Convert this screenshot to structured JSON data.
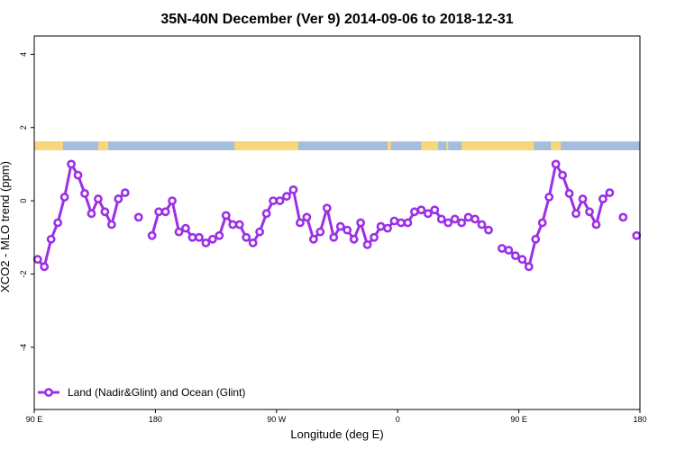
{
  "chart_data": {
    "type": "line",
    "title": "35N-40N December (Ver 9)   2014-09-06 to 2018-12-31",
    "xlabel": "Longitude (deg E)",
    "ylabel": "XCO2 - MLO trend (ppm)",
    "xlim": [
      90,
      450
    ],
    "ylim": [
      -5.7,
      4.5
    ],
    "x_ticks": [
      {
        "value": 90,
        "label": "90 E"
      },
      {
        "value": 162,
        "label": "180"
      },
      {
        "value": 234,
        "label": "90 W"
      },
      {
        "value": 306,
        "label": "0"
      },
      {
        "value": 378,
        "label": "90 E"
      },
      {
        "value": 450,
        "label": "180"
      }
    ],
    "y_ticks": [
      {
        "value": -4,
        "label": "-4"
      },
      {
        "value": -2,
        "label": "-2"
      },
      {
        "value": 0,
        "label": "0"
      },
      {
        "value": 2,
        "label": "2"
      },
      {
        "value": 4,
        "label": "4"
      }
    ],
    "legend": {
      "label": "Land (Nadir&Glint) and Ocean (Glint)",
      "position": "bottom-left"
    },
    "grid": false,
    "series_color": "#9b30e6",
    "land_color": "#f7d77a",
    "ocean_color": "#a4bddb",
    "land_sea_band": {
      "y_range": [
        1.38,
        1.62
      ],
      "land_segments": [
        [
          90,
          107
        ],
        [
          128,
          134
        ],
        [
          209,
          247
        ],
        [
          300,
          302
        ],
        [
          320,
          330
        ],
        [
          335,
          336
        ],
        [
          344,
          387
        ],
        [
          397,
          403
        ]
      ]
    },
    "segments": [
      {
        "x": [
          92,
          96,
          100,
          104,
          108,
          112,
          116,
          120,
          124,
          128,
          132,
          136,
          140
        ],
        "y": [
          -1.6,
          -1.8,
          -1.05,
          -0.6,
          0.1,
          1.0,
          0.7,
          0.2,
          -0.35,
          0.05,
          -0.3,
          -0.65,
          0.05
        ]
      },
      {
        "x": [
          140,
          144
        ],
        "y": [
          0.05,
          0.22
        ]
      },
      {
        "x": [
          152
        ],
        "y": [
          -0.45
        ]
      },
      {
        "x": [
          160,
          164,
          168,
          172,
          176,
          180,
          184,
          188,
          192,
          196,
          200,
          204,
          208,
          212,
          216,
          220,
          224,
          228,
          232,
          236,
          240,
          244,
          248,
          252,
          256,
          260,
          264,
          268,
          272,
          276,
          280,
          284,
          288,
          292,
          296,
          300,
          304,
          308,
          312,
          316,
          320,
          324,
          328,
          332,
          336,
          340,
          344,
          348,
          352,
          356,
          360,
          364
        ],
        "y": [
          -0.95,
          -0.3,
          -0.3,
          0.0,
          -0.85,
          -0.75,
          -1.0,
          -1.0,
          -1.15,
          -1.05,
          -0.95,
          -0.4,
          -0.65,
          -0.65,
          -1.0,
          -1.15,
          -0.85,
          -0.35,
          0.0,
          0.0,
          0.12,
          0.3,
          -0.6,
          -0.45,
          -1.05,
          -0.85,
          -0.2,
          -1.0,
          -0.7,
          -0.8,
          -1.05,
          -0.6,
          -1.2,
          -1.0,
          -0.7,
          -0.75,
          -0.55,
          -0.6,
          -0.6,
          -0.3,
          -0.25,
          -0.35,
          -0.25,
          -0.5,
          -0.6,
          -0.5,
          -0.6,
          -0.45,
          -0.5,
          -0.65,
          -0.8,
          null
        ]
      },
      {
        "x": [
          368,
          372,
          376,
          380,
          384,
          388,
          392,
          396,
          400,
          404,
          408,
          412,
          416,
          420,
          424,
          428
        ],
        "y": [
          -1.3,
          -1.35,
          -1.5,
          -1.6,
          -1.8,
          -1.05,
          -0.6,
          0.1,
          1.0,
          0.7,
          0.2,
          -0.35,
          0.05,
          -0.3,
          -0.65,
          0.05
        ]
      },
      {
        "x": [
          428,
          432
        ],
        "y": [
          0.05,
          0.22
        ]
      },
      {
        "x": [
          440
        ],
        "y": [
          -0.45
        ]
      },
      {
        "x": [
          448
        ],
        "y": [
          -0.95
        ]
      }
    ]
  }
}
